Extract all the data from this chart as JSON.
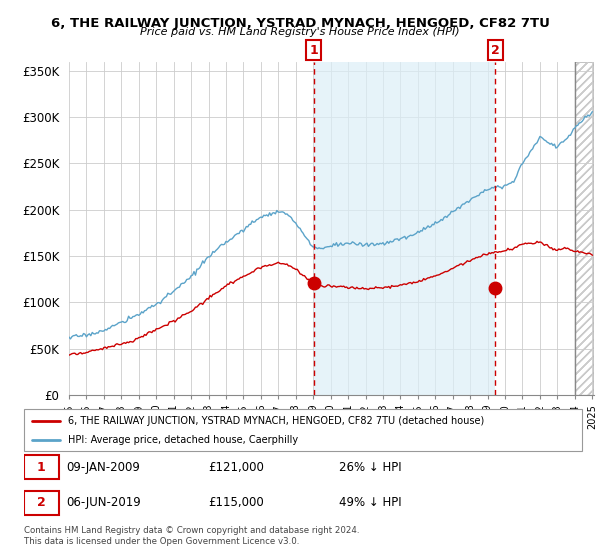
{
  "title": "6, THE RAILWAY JUNCTION, YSTRAD MYNACH, HENGOED, CF82 7TU",
  "subtitle": "Price paid vs. HM Land Registry's House Price Index (HPI)",
  "legend_line1": "6, THE RAILWAY JUNCTION, YSTRAD MYNACH, HENGOED, CF82 7TU (detached house)",
  "legend_line2": "HPI: Average price, detached house, Caerphilly",
  "annotation1_date": "09-JAN-2009",
  "annotation1_price": "£121,000",
  "annotation1_hpi": "26% ↓ HPI",
  "annotation2_date": "06-JUN-2019",
  "annotation2_price": "£115,000",
  "annotation2_hpi": "49% ↓ HPI",
  "footnote": "Contains HM Land Registry data © Crown copyright and database right 2024.\nThis data is licensed under the Open Government Licence v3.0.",
  "hpi_color": "#5ba3c9",
  "hpi_fill_color": "#dceef7",
  "price_color": "#cc0000",
  "annotation_color": "#cc0000",
  "ylim": [
    0,
    360000
  ],
  "yticks": [
    0,
    50000,
    100000,
    150000,
    200000,
    250000,
    300000,
    350000
  ],
  "ytick_labels": [
    "£0",
    "£50K",
    "£100K",
    "£150K",
    "£200K",
    "£250K",
    "£300K",
    "£350K"
  ],
  "year_start": 1995,
  "year_end": 2025,
  "sale1_year": 2009.03,
  "sale1_price": 121000,
  "sale2_year": 2019.43,
  "sale2_price": 115000
}
